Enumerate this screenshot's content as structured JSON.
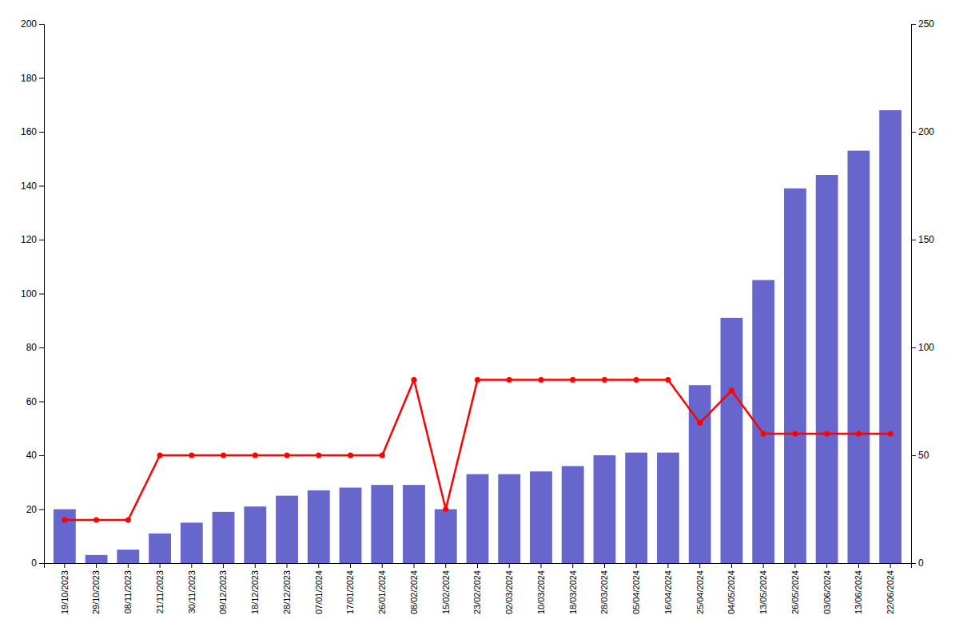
{
  "chart_data": {
    "type": "bar",
    "categories": [
      "19/10/2023",
      "29/10/2023",
      "08/11/2023",
      "21/11/2023",
      "30/11/2023",
      "09/12/2023",
      "18/12/2023",
      "28/12/2023",
      "07/01/2024",
      "17/01/2024",
      "26/01/2024",
      "08/02/2024",
      "15/02/2024",
      "23/02/2024",
      "02/03/2024",
      "10/03/2024",
      "18/03/2024",
      "28/03/2024",
      "05/04/2024",
      "16/04/2024",
      "25/04/2024",
      "04/05/2024",
      "13/05/2024",
      "26/05/2024",
      "03/06/2024",
      "13/06/2024",
      "22/06/2024"
    ],
    "series": [
      {
        "type": "bar",
        "color": "#6666cc",
        "values": [
          20,
          3,
          5,
          11,
          15,
          19,
          21,
          25,
          27,
          28,
          29,
          29,
          20,
          33,
          33,
          34,
          36,
          40,
          41,
          41,
          66,
          91,
          105,
          139,
          144,
          153,
          168
        ]
      },
      {
        "type": "line",
        "color": "#ff0000",
        "marker": "circle",
        "axis": "y2",
        "values": [
          20,
          20,
          20,
          50,
          50,
          50,
          50,
          50,
          50,
          50,
          50,
          85,
          25,
          85,
          85,
          85,
          85,
          85,
          85,
          85,
          65,
          80,
          60,
          60,
          60,
          60,
          60
        ]
      }
    ],
    "ylim": [
      0,
      200
    ],
    "yticks": [
      0,
      20,
      40,
      60,
      80,
      100,
      120,
      140,
      160,
      180,
      200
    ],
    "y2lim": [
      0,
      250
    ],
    "y2ticks": [
      0,
      50,
      100,
      150,
      200,
      250
    ],
    "grid": false
  }
}
